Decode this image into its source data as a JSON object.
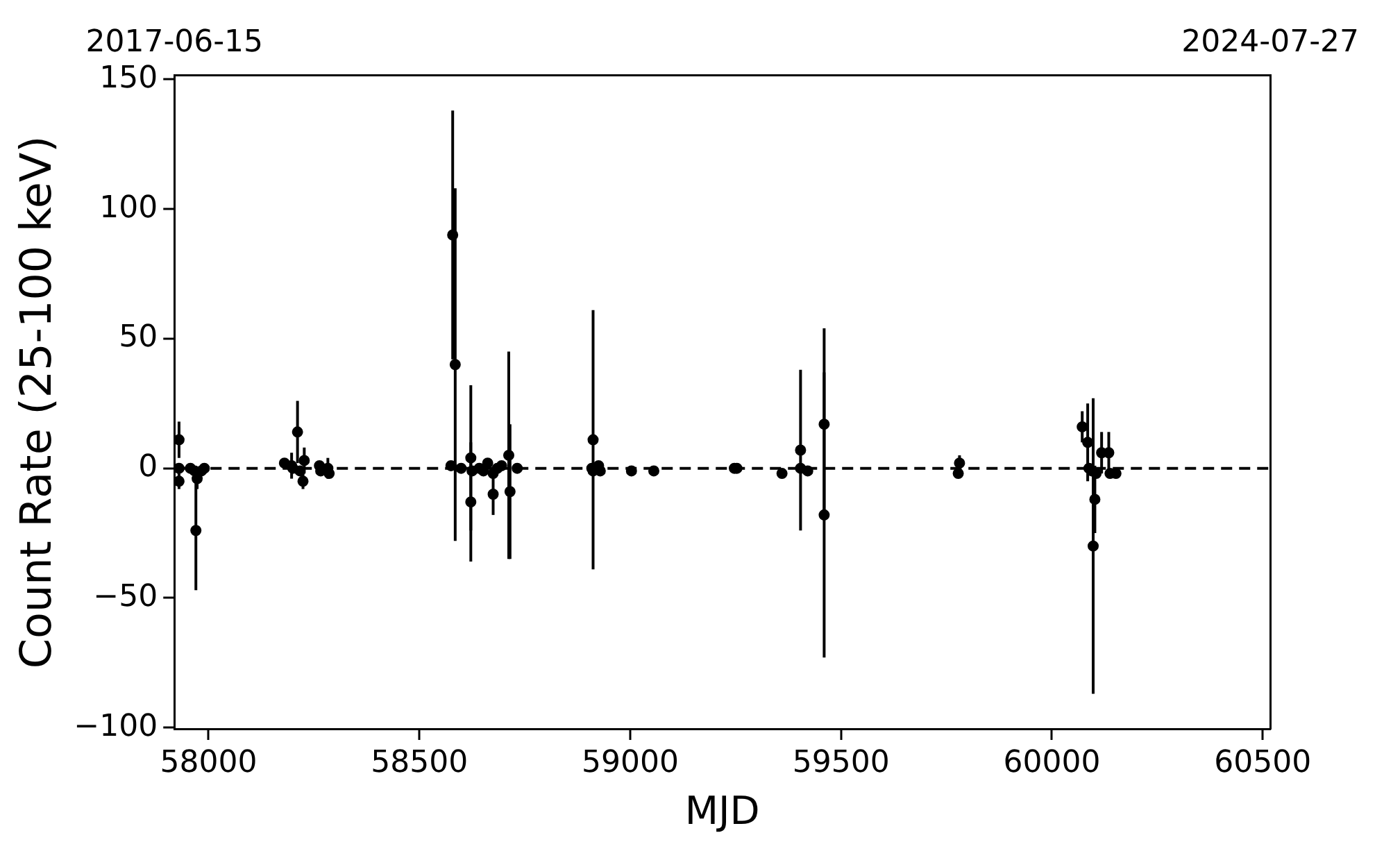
{
  "chart_data": {
    "type": "scatter",
    "xlabel": "MJD",
    "ylabel": "Count Rate (25-100 keV)",
    "x": [
      57930,
      57930,
      57930,
      57957,
      57967,
      57970,
      57973,
      57983,
      57990,
      58180,
      58197,
      58200,
      58211,
      58217,
      58224,
      58227,
      58263,
      58266,
      58283,
      58286,
      58575,
      58579,
      58585,
      58599,
      58622,
      58622,
      58625,
      58642,
      58652,
      58662,
      58675,
      58675,
      58685,
      58695,
      58712,
      58715,
      58732,
      58909,
      58912,
      58912,
      58925,
      58929,
      59003,
      59056,
      59247,
      59253,
      59360,
      59404,
      59404,
      59421,
      59460,
      59460,
      59778,
      59781,
      60072,
      60085,
      60088,
      60095,
      60098,
      60102,
      60105,
      60118,
      60135,
      60138,
      60152
    ],
    "series": [
      {
        "color": "#000000",
        "values": [
          11,
          0,
          -5,
          0,
          -1,
          -24,
          -4,
          -1,
          0,
          2,
          1,
          0,
          14,
          -1,
          -5,
          3,
          1,
          -1,
          0,
          -2,
          1,
          90,
          40,
          0,
          4,
          -13,
          -1,
          0,
          -1,
          2,
          -10,
          -2,
          0,
          1,
          5,
          -9,
          0,
          0,
          11,
          -1,
          1,
          -1,
          -1,
          -1,
          0,
          0,
          -2,
          7,
          0,
          -1,
          17,
          -18,
          -2,
          2,
          16,
          10,
          0,
          -1,
          -30,
          -12,
          -2,
          6,
          6,
          -2,
          -2
        ],
        "errors": [
          7,
          null,
          3,
          null,
          null,
          23,
          4,
          null,
          null,
          null,
          5,
          null,
          12,
          null,
          3,
          5,
          null,
          2,
          4,
          null,
          null,
          48,
          68,
          null,
          28,
          23,
          null,
          null,
          null,
          null,
          8,
          null,
          null,
          null,
          40,
          26,
          null,
          null,
          50,
          null,
          null,
          null,
          null,
          null,
          null,
          null,
          null,
          31,
          null,
          null,
          37,
          55,
          null,
          3,
          6,
          15,
          null,
          null,
          57,
          13,
          null,
          8,
          8,
          null,
          null
        ]
      }
    ],
    "xlim": [
      57919,
      60518
    ],
    "xticks": [
      58000,
      58500,
      59000,
      59500,
      60000,
      60500
    ],
    "ylim": [
      -100.5,
      151.5
    ],
    "yticks": [
      {
        "value": -100,
        "label": "−100"
      },
      {
        "value": -50,
        "label": "−50"
      },
      0,
      50,
      100,
      150
    ],
    "x2lim": [
      "2017-06-15",
      "2024-07-27"
    ],
    "x2ticks": [
      "2017-06-15",
      "2024-07-27"
    ],
    "ref_lines": [
      {
        "axis": "y",
        "value": 0,
        "color": "#000000",
        "line_style": "dashed"
      }
    ],
    "marker": "circle",
    "grid": false,
    "legend": false
  }
}
